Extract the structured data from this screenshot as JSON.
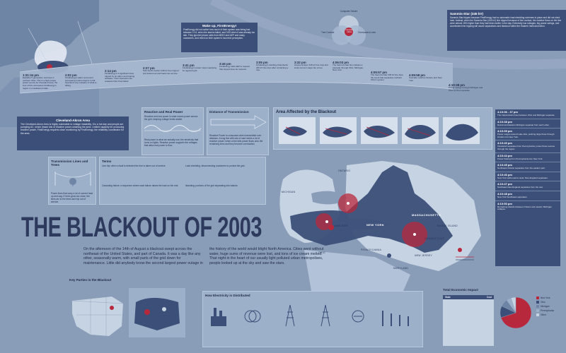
{
  "colors": {
    "background": "#8a9db8",
    "navy": "#3c4f78",
    "red": "#b8283c",
    "panel": "#9cb0ca",
    "light": "#c6d3e3"
  },
  "title": "THE BLACKOUT OF 2003",
  "intro": {
    "col1": "On the afternoon of the 14th of August a blackout swept across the northeast of the United States, and part of Canada. It was a day like any other, seasonally warm, with small parts of the grid down for maintenance. Little did anybody know the second largest power outage in",
    "col2": "the history of the world would blight North America. Cities went without water, huge sums of revenue were lost, and tons of ice cream melted. That night in the heart of our usually light polluted urban metropolises, people looked up at the sky and saw the stars."
  },
  "timeline": {
    "events": [
      {
        "time": "1:31:34 pm",
        "text": "Eastlake 5 generation unit trips in northern Ohio. This is a high-output power source for Cleveland area, the loss of this unit leaves FirstEnergy's region in a weakened state."
      },
      {
        "time": "2:02 pm",
        "text": "FirstEnergy's alarm and event processing routine begins to fail. Operators are unaware of what is failing."
      },
      {
        "time": "2:14 pm",
        "text": "FirstEnergy's 3 significant lines tripped by an alarm and tripping software. Their Operators are unaware that it has failed."
      },
      {
        "time": "2:27 pm",
        "text": "Star-South Canton 345 kV line tripped and locked out and back into service."
      },
      {
        "time": "3:05 pm",
        "text": "FirstEnergy's Harding-Chamberlin 345 kV line trips after contacting a tree."
      },
      {
        "time": "3:32 pm",
        "text": "Hanna-Juniper 345 kV line trips and locks out as it sags into a tree."
      },
      {
        "time": "3:41 pm",
        "text": "FirstEnergy's power stops supplying its regional grid."
      },
      {
        "time": "3:46 pm",
        "text": "FirstEnergy calls AEP to request that tripped lines be restored."
      },
      {
        "time": "4:05:57 pm",
        "text": "The Sammis-Star 345 kV line trips, the event that separates northern Ohio's system."
      },
      {
        "time": "4:06:03 pm",
        "text": "The Sammis-Star line initiates a cascade through Ohio, Michigan, New York."
      },
      {
        "time": "4:09:58 pm",
        "text": "Cascade reaches Ontario and New York."
      },
      {
        "time": "4:10:38 pm",
        "text": "Power swings through Michigan and Ohio as lines separate."
      }
    ]
  },
  "wakeup": {
    "heading": "Wake up, FirstEnergy!",
    "text": "FirstEnergy did not notice how much of their system was being lost between 2:14, when the alarms failed, and 3:59 when it was already too late. They ignored phone calls from MISO and AEP and many customers, and relied on their system's incorrect perception."
  },
  "venn": {
    "left": "Tree Contact",
    "right": "Overloaded Lines",
    "top": "Computer Failure",
    "center": "Cascading Failure"
  },
  "sammis": {
    "heading": "Sammis-Star (345 kV)",
    "text": "Sammis-Star tripped because FirstEnergy had no automatic load shedding schemes in place and did not shed load. Instead, when the Sammis-Star (345 kV) line tripped because of line contact, the reactive flows on the line were almost 15% higher than they had been earlier in the day. Extremely low voltages, big power swings, and accelerated line tripping will cause separations and blackout within the Eastern Interconnection."
  },
  "right_timeline": [
    {
      "time": "4:10:36 - 37 pm",
      "text": "The transmission lines between Ohio and Michigan separate."
    },
    {
      "time": "4:10:38 pm",
      "text": "Detroit and Eastern Michigan separate from each other."
    },
    {
      "time": "4:10:39 pm",
      "text": "Power surges around Lake Erie, pushing large flows through Ontario into New York."
    },
    {
      "time": "4:10:40 pm",
      "text": "Cleveland separates from Pennsylvania; power flows reverse through the region."
    },
    {
      "time": "4:10:44 pm",
      "text": "Power flowing from Pennsylvania into New York."
    },
    {
      "time": "4:10:45 pm",
      "text": "Northwest Ontario separates from the eastern part."
    },
    {
      "time": "4:10:46 pm",
      "text": "New York splits east to west; New England separates."
    },
    {
      "time": "4:10:47 pm",
      "text": "Southeast New England separates from the rest."
    },
    {
      "time": "4:10:48 pm",
      "text": "New York Southwest separates."
    },
    {
      "time": "4:10:50 pm",
      "text": "Remaining islands between Ontario and eastern Michigan collapse."
    }
  ],
  "cleveland": {
    "heading": "Cleveland-Akron Area",
    "text": "The Cleveland-Akron Area is highly vulnerable to voltage instability. It is a hot day and people are pumping AC, which draws lots of reactive power-straining the area. Limited capacity for producing reactive power, FirstEnergy requires close monitoring by FirstEnergy, the reliability coordinator for the area."
  },
  "reactive": {
    "heading": "Reactive and Real Power",
    "text1": "Reactive and real power is what moves power across the grid, keeping voltage levels stable.",
    "text2": "Real power is what we actually use; the electricity that turns on lights. Reactive power supports the voltages that allow real power to flow."
  },
  "distance": {
    "heading": "Distance of Transmission",
    "text": "Reactive Power is consumed when transmitted over distance. A long line with lots of load needs a lot of reactive power; when a line fails power flows onto the remaining lines and they become overloaded."
  },
  "lines_trees": {
    "heading": "Transmission Lines and Trees",
    "text": "Power lines that carry a lot of current heat up and sag. If trees grow too close, the lines arc to the trees and trip out of service."
  },
  "terms": {
    "heading": "Terms",
    "items": [
      "Line trip: when a fault is detected the line is taken out of service.",
      "Load shedding: disconnecting customers to protect the grid.",
      "Cascading failure: a sequence where each failure raises the load on the rest.",
      "Islanding: portions of the grid separating into islands."
    ]
  },
  "area": {
    "heading": "Area Affected by the Blackout"
  },
  "map_labels": {
    "michigan": "MICHIGAN",
    "new_york": "NEW YORK",
    "ohio": "OHIO",
    "pennsylvania": "PENNSYLVANIA",
    "new_jersey": "NEW JERSEY",
    "maryland": "MARYLAND",
    "massachusetts": "MASSACHUSETTS",
    "connecticut": "CONNECTICUT",
    "rhode_island": "RHODE ISLAND",
    "ontario": "ONTARIO",
    "lake_erie": "LAKE ERIE"
  },
  "key_players": {
    "heading": "Key Parties in the Blackout"
  },
  "distributed": {
    "heading": "How Electricity is Distributed"
  },
  "economic": {
    "heading": "Total Economic Impact",
    "col1": "State",
    "col2": "Cost",
    "pie": [
      {
        "label": "New York",
        "value": 70
      },
      {
        "label": "Ohio",
        "value": 12
      },
      {
        "label": "Michigan",
        "value": 8
      },
      {
        "label": "Pennsylvania",
        "value": 5
      },
      {
        "label": "Other",
        "value": 5
      }
    ]
  }
}
